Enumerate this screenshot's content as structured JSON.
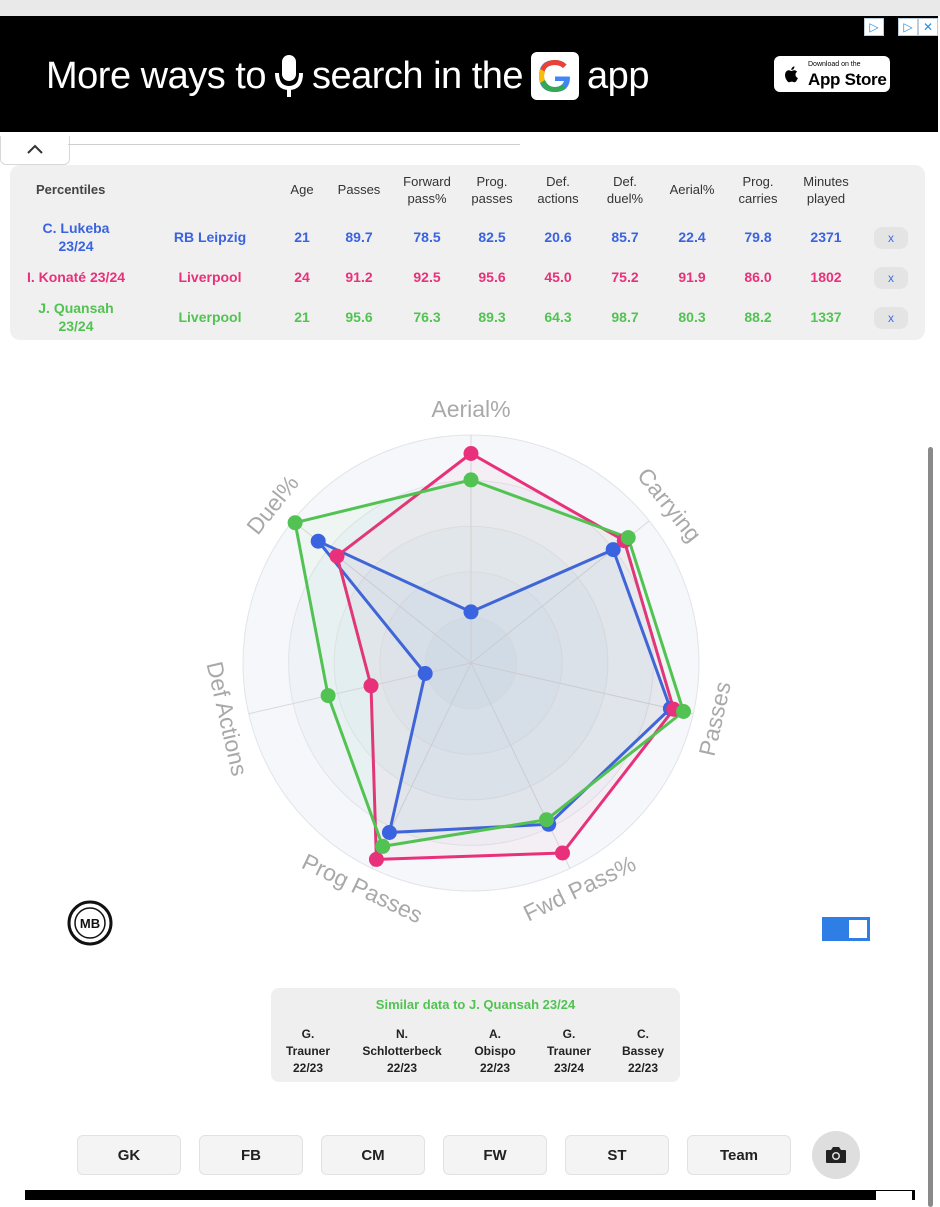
{
  "ad": {
    "text_before": "More ways to",
    "text_middle": "search in the",
    "text_after": "app",
    "appstore_small": "Download on the",
    "appstore_big": "App Store",
    "icons": [
      "microphone-icon",
      "google-g-logo",
      "apple-logo",
      "adchoices-icon",
      "close-icon"
    ]
  },
  "percentiles": {
    "heading": "Percentiles",
    "columns": [
      {
        "line1": "Age",
        "line2": ""
      },
      {
        "line1": "Passes",
        "line2": ""
      },
      {
        "line1": "Forward",
        "line2": "pass%"
      },
      {
        "line1": "Prog.",
        "line2": "passes"
      },
      {
        "line1": "Def.",
        "line2": "actions"
      },
      {
        "line1": "Def.",
        "line2": "duel%"
      },
      {
        "line1": "Aerial%",
        "line2": ""
      },
      {
        "line1": "Prog.",
        "line2": "carries"
      },
      {
        "line1": "Minutes",
        "line2": "played"
      }
    ],
    "rows": [
      {
        "name1": "C. Lukeba",
        "name2": "23/24",
        "team": "RB Leipzig",
        "color": "#3a63e0",
        "values": [
          "21",
          "89.7",
          "78.5",
          "82.5",
          "20.6",
          "85.7",
          "22.4",
          "79.8",
          "2371"
        ],
        "remove": "x"
      },
      {
        "name1": "I. Konaté 23/24",
        "name2": "",
        "team": "Liverpool",
        "color": "#e8317a",
        "values": [
          "24",
          "91.2",
          "92.5",
          "95.6",
          "45.0",
          "75.2",
          "91.9",
          "86.0",
          "1802"
        ],
        "remove": "x"
      },
      {
        "name1": "J. Quansah",
        "name2": "23/24",
        "team": "Liverpool",
        "color": "#52c352",
        "values": [
          "21",
          "95.6",
          "76.3",
          "89.3",
          "64.3",
          "98.7",
          "80.3",
          "88.2",
          "1337"
        ],
        "remove": "x"
      }
    ]
  },
  "chart_data": {
    "type": "radar",
    "axes": [
      "Aerial%",
      "Carrying",
      "Passes",
      "Fwd Pass%",
      "Prog Passes",
      "Def Actions",
      "Duel%"
    ],
    "range": [
      0,
      100
    ],
    "series": [
      {
        "name": "C. Lukeba 23/24",
        "color": "#3a63e0",
        "values": [
          22.4,
          79.8,
          89.7,
          78.5,
          82.5,
          20.6,
          85.7
        ]
      },
      {
        "name": "I. Konaté 23/24",
        "color": "#e8317a",
        "values": [
          91.9,
          86.0,
          91.2,
          92.5,
          95.6,
          45.0,
          75.2
        ]
      },
      {
        "name": "J. Quansah 23/24",
        "color": "#52c352",
        "values": [
          80.3,
          88.2,
          95.6,
          76.3,
          89.3,
          64.3,
          98.7
        ]
      }
    ]
  },
  "logo": {
    "text": "MB"
  },
  "similar": {
    "title": "Similar data to J. Quansah 23/24",
    "players": [
      {
        "first": "G.",
        "last": "Trauner",
        "season": "22/23"
      },
      {
        "first": "N.",
        "last": "Schlotterbeck",
        "season": "22/23"
      },
      {
        "first": "A.",
        "last": "Obispo",
        "season": "22/23"
      },
      {
        "first": "G.",
        "last": "Trauner",
        "season": "23/24"
      },
      {
        "first": "C.",
        "last": "Bassey",
        "season": "22/23"
      }
    ]
  },
  "positions": [
    "GK",
    "FB",
    "CM",
    "FW",
    "ST",
    "Team"
  ],
  "camera_icon": "camera-icon"
}
